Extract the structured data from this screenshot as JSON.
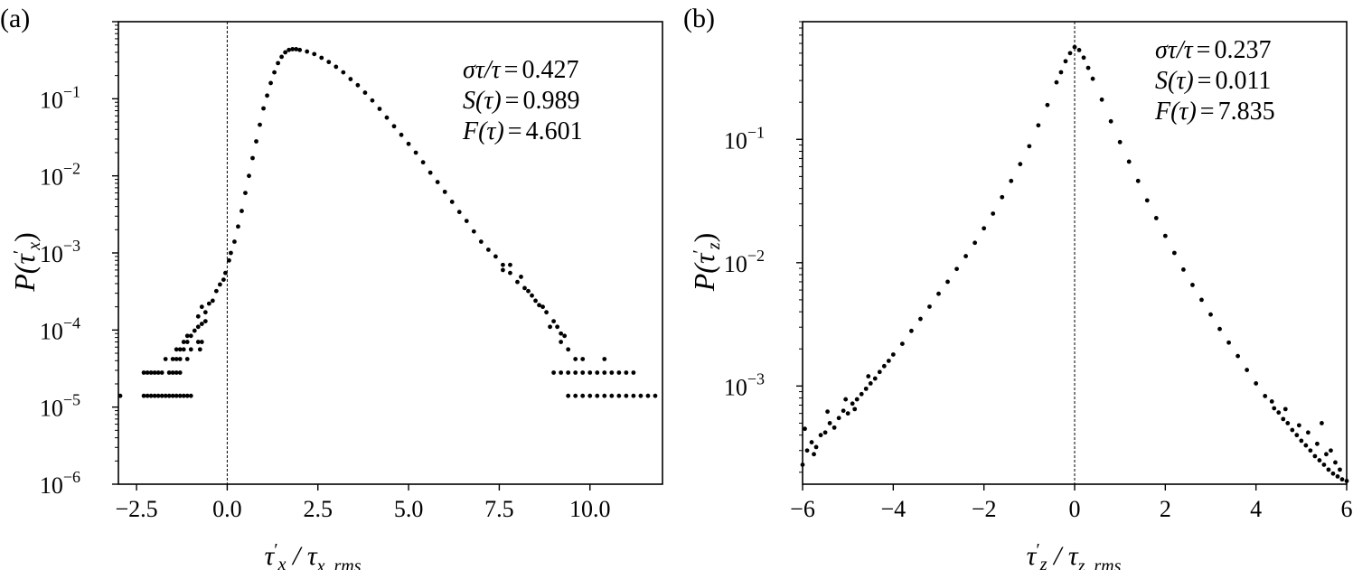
{
  "chart_data": [
    {
      "panel_label": "(a)",
      "type": "scatter",
      "xscale": "linear",
      "yscale": "log",
      "xlim": [
        -3.0,
        12.0
      ],
      "ylim": [
        1e-06,
        1.0
      ],
      "x_ticks": [
        -2.5,
        0.0,
        2.5,
        5.0,
        7.5,
        10.0
      ],
      "x_tick_labels": [
        "−2.5",
        "0.0",
        "2.5",
        "5.0",
        "7.5",
        "10.0"
      ],
      "y_ticks": [
        {
          "value": 1e-06,
          "base": "10",
          "exp": "−6"
        },
        {
          "value": 1e-05,
          "base": "10",
          "exp": "−5"
        },
        {
          "value": 0.0001,
          "base": "10",
          "exp": "−4"
        },
        {
          "value": 0.001,
          "base": "10",
          "exp": "−3"
        },
        {
          "value": 0.01,
          "base": "10",
          "exp": "−2"
        },
        {
          "value": 0.1,
          "base": "10",
          "exp": "−1"
        }
      ],
      "vline_x": 0.0,
      "xlabel": {
        "main": "τ",
        "prime": "′",
        "sub": "x",
        "sep": " / τ",
        "sub2": "x, rms"
      },
      "ylabel": {
        "main": "P(τ",
        "prime": "′",
        "sub": "x",
        "close": ")"
      },
      "annotations": [
        {
          "lhs": "στ/τ",
          "eq": "=",
          "value": "0.427"
        },
        {
          "lhs": "S(τ)",
          "eq": "=",
          "value": "0.989"
        },
        {
          "lhs": "F(τ)",
          "eq": "=",
          "value": "4.601"
        }
      ],
      "points": [
        [
          -2.95,
          1.4e-05
        ],
        [
          -2.3,
          1.4e-05
        ],
        [
          -2.2,
          1.4e-05
        ],
        [
          -2.1,
          1.4e-05
        ],
        [
          -2.0,
          1.4e-05
        ],
        [
          -1.9,
          1.4e-05
        ],
        [
          -1.8,
          1.4e-05
        ],
        [
          -1.7,
          1.4e-05
        ],
        [
          -1.6,
          1.4e-05
        ],
        [
          -1.5,
          1.4e-05
        ],
        [
          -1.4,
          1.4e-05
        ],
        [
          -1.3,
          1.4e-05
        ],
        [
          -1.2,
          1.4e-05
        ],
        [
          -1.1,
          1.4e-05
        ],
        [
          -1.0,
          1.4e-05
        ],
        [
          -2.3,
          2.8e-05
        ],
        [
          -2.2,
          2.8e-05
        ],
        [
          -2.1,
          2.8e-05
        ],
        [
          -2.0,
          2.8e-05
        ],
        [
          -1.9,
          2.8e-05
        ],
        [
          -1.8,
          2.8e-05
        ],
        [
          -1.6,
          2.8e-05
        ],
        [
          -1.5,
          2.8e-05
        ],
        [
          -1.4,
          2.8e-05
        ],
        [
          -1.3,
          2.8e-05
        ],
        [
          -1.7,
          4.2e-05
        ],
        [
          -1.5,
          4.2e-05
        ],
        [
          -1.4,
          4.2e-05
        ],
        [
          -1.3,
          4.2e-05
        ],
        [
          -1.1,
          4.2e-05
        ],
        [
          -1.4,
          5.6e-05
        ],
        [
          -1.3,
          5.6e-05
        ],
        [
          -1.2,
          5.6e-05
        ],
        [
          -1.0,
          5.6e-05
        ],
        [
          -0.75,
          5.6e-05
        ],
        [
          -1.2,
          7e-05
        ],
        [
          -1.1,
          7e-05
        ],
        [
          -0.8,
          7e-05
        ],
        [
          -0.7,
          7e-05
        ],
        [
          -1.1,
          8.4e-05
        ],
        [
          -1.0,
          8.4e-05
        ],
        [
          -0.9,
          9.8e-05
        ],
        [
          -0.8,
          0.00011
        ],
        [
          -0.7,
          0.00012
        ],
        [
          -0.6,
          0.00013
        ],
        [
          -0.8,
          0.00015
        ],
        [
          -0.6,
          0.00017
        ],
        [
          -0.7,
          0.0002
        ],
        [
          -0.5,
          0.00022
        ],
        [
          -0.4,
          0.00024
        ],
        [
          -0.3,
          0.00032
        ],
        [
          -0.2,
          0.00039
        ],
        [
          -0.1,
          0.00045
        ],
        [
          -0.05,
          0.00055
        ],
        [
          0.05,
          0.0008
        ],
        [
          0.1,
          0.001
        ],
        [
          0.2,
          0.0014
        ],
        [
          0.3,
          0.0022
        ],
        [
          0.4,
          0.0035
        ],
        [
          0.5,
          0.006
        ],
        [
          0.6,
          0.01
        ],
        [
          0.7,
          0.017
        ],
        [
          0.8,
          0.028
        ],
        [
          0.9,
          0.046
        ],
        [
          1.0,
          0.075
        ],
        [
          1.1,
          0.11
        ],
        [
          1.2,
          0.16
        ],
        [
          1.3,
          0.22
        ],
        [
          1.4,
          0.29
        ],
        [
          1.5,
          0.35
        ],
        [
          1.6,
          0.4
        ],
        [
          1.7,
          0.43
        ],
        [
          1.8,
          0.44
        ],
        [
          1.9,
          0.44
        ],
        [
          2.0,
          0.43
        ],
        [
          2.2,
          0.41
        ],
        [
          2.4,
          0.38
        ],
        [
          2.6,
          0.34
        ],
        [
          2.8,
          0.3
        ],
        [
          3.0,
          0.26
        ],
        [
          3.2,
          0.22
        ],
        [
          3.4,
          0.18
        ],
        [
          3.6,
          0.15
        ],
        [
          3.8,
          0.12
        ],
        [
          4.0,
          0.095
        ],
        [
          4.2,
          0.074
        ],
        [
          4.4,
          0.057
        ],
        [
          4.6,
          0.044
        ],
        [
          4.8,
          0.034
        ],
        [
          5.0,
          0.026
        ],
        [
          5.2,
          0.02
        ],
        [
          5.4,
          0.015
        ],
        [
          5.6,
          0.011
        ],
        [
          5.8,
          0.0083
        ],
        [
          6.0,
          0.0062
        ],
        [
          6.2,
          0.0046
        ],
        [
          6.4,
          0.0034
        ],
        [
          6.6,
          0.0026
        ],
        [
          6.8,
          0.0019
        ],
        [
          7.0,
          0.0014
        ],
        [
          7.2,
          0.0011
        ],
        [
          7.4,
          0.0009
        ],
        [
          7.6,
          0.0007
        ],
        [
          7.8,
          0.00055
        ],
        [
          8.0,
          0.00042
        ],
        [
          8.2,
          0.00035
        ],
        [
          8.4,
          0.00028
        ],
        [
          8.6,
          0.00021
        ],
        [
          8.8,
          0.00017
        ],
        [
          9.0,
          0.00013
        ],
        [
          9.2,
          9e-05
        ],
        [
          7.6,
          0.0006
        ],
        [
          7.8,
          0.0007
        ],
        [
          8.1,
          0.00049
        ],
        [
          8.3,
          0.00032
        ],
        [
          8.5,
          0.00024
        ],
        [
          8.7,
          0.0002
        ],
        [
          8.9,
          0.00011
        ],
        [
          9.1,
          0.00011
        ],
        [
          9.2,
          7e-05
        ],
        [
          9.3,
          8.4e-05
        ],
        [
          9.4,
          5.6e-05
        ],
        [
          9.6,
          4.2e-05
        ],
        [
          9.8,
          4.2e-05
        ],
        [
          10.4,
          4.2e-05
        ],
        [
          9.0,
          2.8e-05
        ],
        [
          9.2,
          2.8e-05
        ],
        [
          9.4,
          2.8e-05
        ],
        [
          9.6,
          2.8e-05
        ],
        [
          9.8,
          2.8e-05
        ],
        [
          10.0,
          2.8e-05
        ],
        [
          10.2,
          2.8e-05
        ],
        [
          10.4,
          2.8e-05
        ],
        [
          10.6,
          2.8e-05
        ],
        [
          10.8,
          2.8e-05
        ],
        [
          11.0,
          2.8e-05
        ],
        [
          11.2,
          2.8e-05
        ],
        [
          9.4,
          1.4e-05
        ],
        [
          9.6,
          1.4e-05
        ],
        [
          9.8,
          1.4e-05
        ],
        [
          10.0,
          1.4e-05
        ],
        [
          10.2,
          1.4e-05
        ],
        [
          10.4,
          1.4e-05
        ],
        [
          10.6,
          1.4e-05
        ],
        [
          10.8,
          1.4e-05
        ],
        [
          11.0,
          1.4e-05
        ],
        [
          11.2,
          1.4e-05
        ],
        [
          11.4,
          1.4e-05
        ],
        [
          11.6,
          1.4e-05
        ],
        [
          11.8,
          1.4e-05
        ]
      ]
    },
    {
      "panel_label": "(b)",
      "type": "scatter",
      "xscale": "linear",
      "yscale": "log",
      "xlim": [
        -6.0,
        6.0
      ],
      "ylim": [
        0.00016,
        0.9
      ],
      "x_ticks": [
        -6,
        -4,
        -2,
        0,
        2,
        4,
        6
      ],
      "x_tick_labels": [
        "−6",
        "−4",
        "−2",
        "0",
        "2",
        "4",
        "6"
      ],
      "y_ticks": [
        {
          "value": 0.001,
          "base": "10",
          "exp": "−3"
        },
        {
          "value": 0.01,
          "base": "10",
          "exp": "−2"
        },
        {
          "value": 0.1,
          "base": "10",
          "exp": "−1"
        }
      ],
      "vline_x": 0.0,
      "xlabel": {
        "main": "τ",
        "prime": "′",
        "sub": "z",
        "sep": " / τ",
        "sub2": "z, rms"
      },
      "ylabel": {
        "main": "P(τ",
        "prime": "′",
        "sub": "z",
        "close": ")"
      },
      "annotations": [
        {
          "lhs": "στ/τ",
          "eq": "=",
          "value": "0.237"
        },
        {
          "lhs": "S(τ)",
          "eq": "=",
          "value": "0.011"
        },
        {
          "lhs": "F(τ)",
          "eq": "=",
          "value": "7.835"
        }
      ],
      "points": [
        [
          -6.0,
          0.00023
        ],
        [
          -5.9,
          0.0003
        ],
        [
          -5.8,
          0.00035
        ],
        [
          -5.7,
          0.00032
        ],
        [
          -5.6,
          0.0004
        ],
        [
          -5.5,
          0.00042
        ],
        [
          -5.4,
          0.0005
        ],
        [
          -5.3,
          0.00046
        ],
        [
          -5.2,
          0.00055
        ],
        [
          -5.1,
          0.00063
        ],
        [
          -5.0,
          0.0006
        ],
        [
          -4.9,
          0.00072
        ],
        [
          -4.8,
          0.00078
        ],
        [
          -4.7,
          0.00086
        ],
        [
          -4.6,
          0.00095
        ],
        [
          -4.5,
          0.00105
        ],
        [
          -4.4,
          0.00115
        ],
        [
          -4.3,
          0.0013
        ],
        [
          -4.2,
          0.00145
        ],
        [
          -4.1,
          0.0016
        ],
        [
          -4.0,
          0.0018
        ],
        [
          -3.8,
          0.0022
        ],
        [
          -3.6,
          0.0028
        ],
        [
          -3.4,
          0.0035
        ],
        [
          -3.2,
          0.0044
        ],
        [
          -3.0,
          0.0056
        ],
        [
          -2.8,
          0.007
        ],
        [
          -2.6,
          0.0089
        ],
        [
          -2.4,
          0.0113
        ],
        [
          -2.2,
          0.0145
        ],
        [
          -2.0,
          0.019
        ],
        [
          -1.8,
          0.025
        ],
        [
          -1.6,
          0.034
        ],
        [
          -1.4,
          0.046
        ],
        [
          -1.2,
          0.063
        ],
        [
          -1.0,
          0.088
        ],
        [
          -0.8,
          0.13
        ],
        [
          -0.6,
          0.19
        ],
        [
          -0.4,
          0.29
        ],
        [
          -0.3,
          0.35
        ],
        [
          -0.2,
          0.43
        ],
        [
          -0.1,
          0.5
        ],
        [
          0.0,
          0.56
        ],
        [
          0.1,
          0.53
        ],
        [
          0.2,
          0.46
        ],
        [
          0.3,
          0.38
        ],
        [
          0.4,
          0.31
        ],
        [
          0.6,
          0.21
        ],
        [
          0.8,
          0.14
        ],
        [
          1.0,
          0.095
        ],
        [
          1.2,
          0.066
        ],
        [
          1.4,
          0.046
        ],
        [
          1.6,
          0.032
        ],
        [
          1.8,
          0.023
        ],
        [
          2.0,
          0.0165
        ],
        [
          2.2,
          0.012
        ],
        [
          2.4,
          0.0088
        ],
        [
          2.6,
          0.0066
        ],
        [
          2.8,
          0.005
        ],
        [
          3.0,
          0.0038
        ],
        [
          3.2,
          0.0029
        ],
        [
          3.4,
          0.00225
        ],
        [
          3.6,
          0.00175
        ],
        [
          3.8,
          0.00135
        ],
        [
          4.0,
          0.00105
        ],
        [
          4.2,
          0.00083
        ],
        [
          4.4,
          0.00066
        ],
        [
          4.5,
          0.00061
        ],
        [
          4.6,
          0.00054
        ],
        [
          4.7,
          0.0005
        ],
        [
          4.8,
          0.00044
        ],
        [
          4.9,
          0.0004
        ],
        [
          5.0,
          0.00036
        ],
        [
          5.1,
          0.00033
        ],
        [
          5.2,
          0.0003
        ],
        [
          5.3,
          0.00027
        ],
        [
          5.4,
          0.00025
        ],
        [
          5.5,
          0.00023
        ],
        [
          5.6,
          0.00021
        ],
        [
          5.7,
          0.000195
        ],
        [
          5.8,
          0.000185
        ],
        [
          5.9,
          0.000175
        ],
        [
          6.0,
          0.00017
        ],
        [
          -5.95,
          0.00045
        ],
        [
          -5.75,
          0.00028
        ],
        [
          -5.45,
          0.00062
        ],
        [
          -5.05,
          0.00078
        ],
        [
          -4.85,
          0.00065
        ],
        [
          -4.55,
          0.0012
        ],
        [
          4.35,
          0.00075
        ],
        [
          4.65,
          0.00065
        ],
        [
          4.95,
          0.00048
        ],
        [
          5.15,
          0.00042
        ],
        [
          5.35,
          0.00034
        ],
        [
          5.55,
          0.00028
        ],
        [
          5.75,
          0.00024
        ],
        [
          5.85,
          0.00021
        ],
        [
          5.45,
          0.0005
        ],
        [
          5.65,
          0.0003
        ]
      ]
    }
  ]
}
